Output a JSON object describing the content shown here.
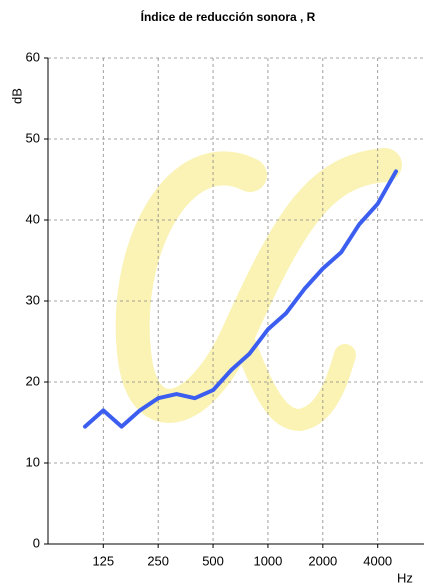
{
  "chart_data": {
    "type": "line",
    "title": "Índice de reducción sonora   , R",
    "ylabel": "dB",
    "xlabel": "Hz",
    "categories": [
      null,
      "125",
      null,
      null,
      "250",
      null,
      null,
      "500",
      null,
      null,
      "1000",
      null,
      null,
      "2000",
      null,
      null,
      "4000",
      null
    ],
    "values": [
      14.5,
      16.5,
      14.5,
      16.5,
      18,
      18.5,
      18,
      19,
      21.5,
      23.5,
      26.5,
      28.5,
      31.5,
      34,
      36,
      39.5,
      42,
      46
    ],
    "color": "#3b5ef0",
    "ylim": [
      0,
      60
    ],
    "yticks": [
      0,
      10,
      20,
      30,
      40,
      50,
      60
    ],
    "grid": true
  }
}
